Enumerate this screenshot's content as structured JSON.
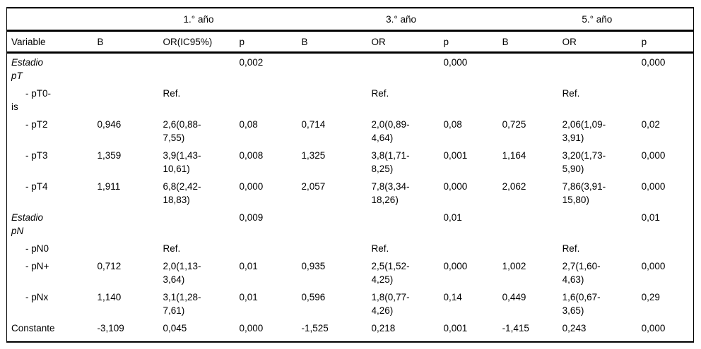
{
  "table": {
    "year_headers": [
      "1.° año",
      "3.° año",
      "5.° año"
    ],
    "columns": [
      "Variable",
      "B",
      "OR(IC95%)",
      "p",
      "B",
      "OR",
      "p",
      "B",
      "OR",
      "p"
    ],
    "rows": [
      {
        "label": "Estadio\npT",
        "style": "italic",
        "cells": [
          "",
          "",
          "0,002",
          "",
          "",
          "0,000",
          "",
          "",
          "0,000"
        ]
      },
      {
        "label": "- pT0-\nis",
        "style": "sub",
        "cells": [
          "",
          "Ref.",
          "",
          "",
          "Ref.",
          "",
          "",
          "Ref.",
          ""
        ]
      },
      {
        "label": "- pT2",
        "style": "sub",
        "cells": [
          "0,946",
          "2,6(0,88-\n7,55)",
          "0,08",
          "0,714",
          "2,0(0,89-\n4,64)",
          "0,08",
          "0,725",
          "2,06(1,09-\n3,91)",
          "0,02"
        ]
      },
      {
        "label": "- pT3",
        "style": "sub",
        "cells": [
          "1,359",
          "3,9(1,43-\n10,61)",
          "0,008",
          "1,325",
          "3,8(1,71-\n8,25)",
          "0,001",
          "1,164",
          "3,20(1,73-\n5,90)",
          "0,000"
        ]
      },
      {
        "label": "- pT4",
        "style": "sub",
        "cells": [
          "1,911",
          "6,8(2,42-\n18,83)",
          "0,000",
          "2,057",
          "7,8(3,34-\n18,26)",
          "0,000",
          "2,062",
          "7,86(3,91-\n15,80)",
          "0,000"
        ]
      },
      {
        "label": "Estadio\npN",
        "style": "italic",
        "cells": [
          "",
          "",
          "0,009",
          "",
          "",
          "0,01",
          "",
          "",
          "0,01"
        ]
      },
      {
        "label": "- pN0",
        "style": "sub",
        "cells": [
          "",
          "Ref.",
          "",
          "",
          "Ref.",
          "",
          "",
          "Ref.",
          ""
        ]
      },
      {
        "label": "- pN+",
        "style": "sub",
        "cells": [
          "0,712",
          "2,0(1,13-\n3,64)",
          "0,01",
          "0,935",
          "2,5(1,52-\n4,25)",
          "0,000",
          "1,002",
          "2,7(1,60-\n4,63)",
          "0,000"
        ]
      },
      {
        "label": "- pNx",
        "style": "sub",
        "cells": [
          "1,140",
          "3,1(1,28-\n7,61)",
          "0,01",
          "0,596",
          "1,8(0,77-\n4,26)",
          "0,14",
          "0,449",
          "1,6(0,67-\n3,65)",
          "0,29"
        ]
      },
      {
        "label": "Constante",
        "style": "normal",
        "cells": [
          "-3,109",
          "0,045",
          "0,000",
          "-1,525",
          "0,218",
          "0,001",
          "-1,415",
          "0,243",
          "0,000"
        ]
      }
    ]
  }
}
